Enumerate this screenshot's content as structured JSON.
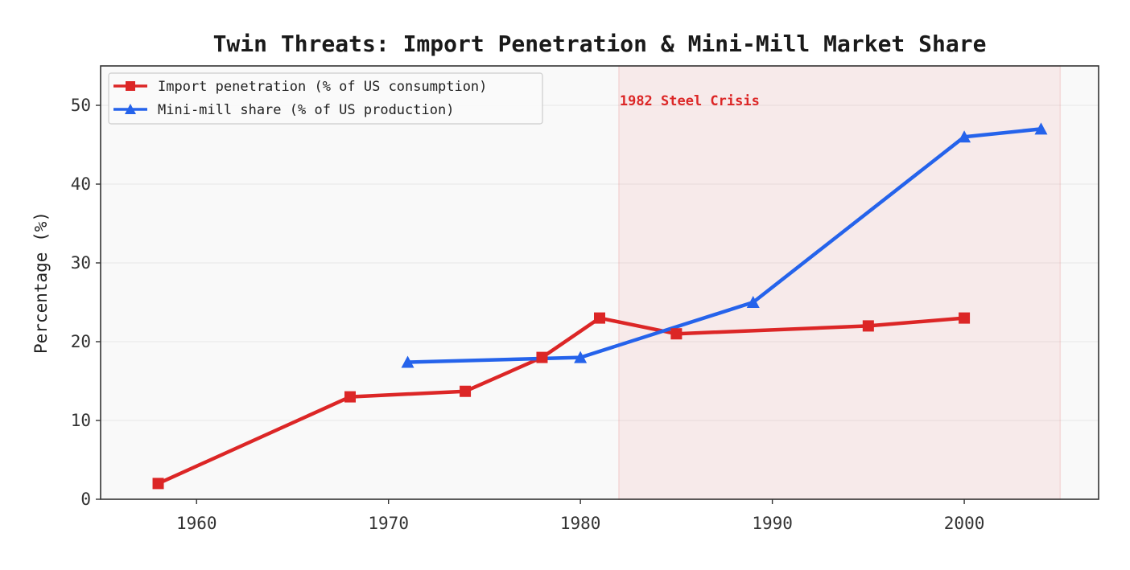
{
  "chart_data": {
    "type": "line",
    "title": "Twin Threats: Import Penetration & Mini-Mill Market Share",
    "xlabel": "",
    "ylabel": "Percentage (%)",
    "xlim": [
      1955,
      2007
    ],
    "ylim": [
      0,
      55
    ],
    "xticks": [
      1960,
      1970,
      1980,
      1990,
      2000
    ],
    "yticks": [
      0,
      10,
      20,
      30,
      40,
      50
    ],
    "grid": true,
    "legend_position": "top-left",
    "series": [
      {
        "name": "Import penetration (% of US consumption)",
        "color": "#dc2626",
        "marker": "square",
        "x": [
          1958,
          1968,
          1974,
          1978,
          1981,
          1985,
          1995,
          2000
        ],
        "y": [
          2,
          13,
          13.7,
          18,
          23,
          21,
          22,
          23
        ]
      },
      {
        "name": "Mini-mill share (% of US production)",
        "color": "#2563eb",
        "marker": "triangle",
        "x": [
          1971,
          1980,
          1989,
          2000,
          2004
        ],
        "y": [
          17.4,
          18,
          25,
          46,
          47
        ]
      }
    ],
    "shaded_region": {
      "label": "1982 Steel Crisis",
      "x_start": 1982,
      "x_end": 2005,
      "color": "#dc2626"
    }
  }
}
